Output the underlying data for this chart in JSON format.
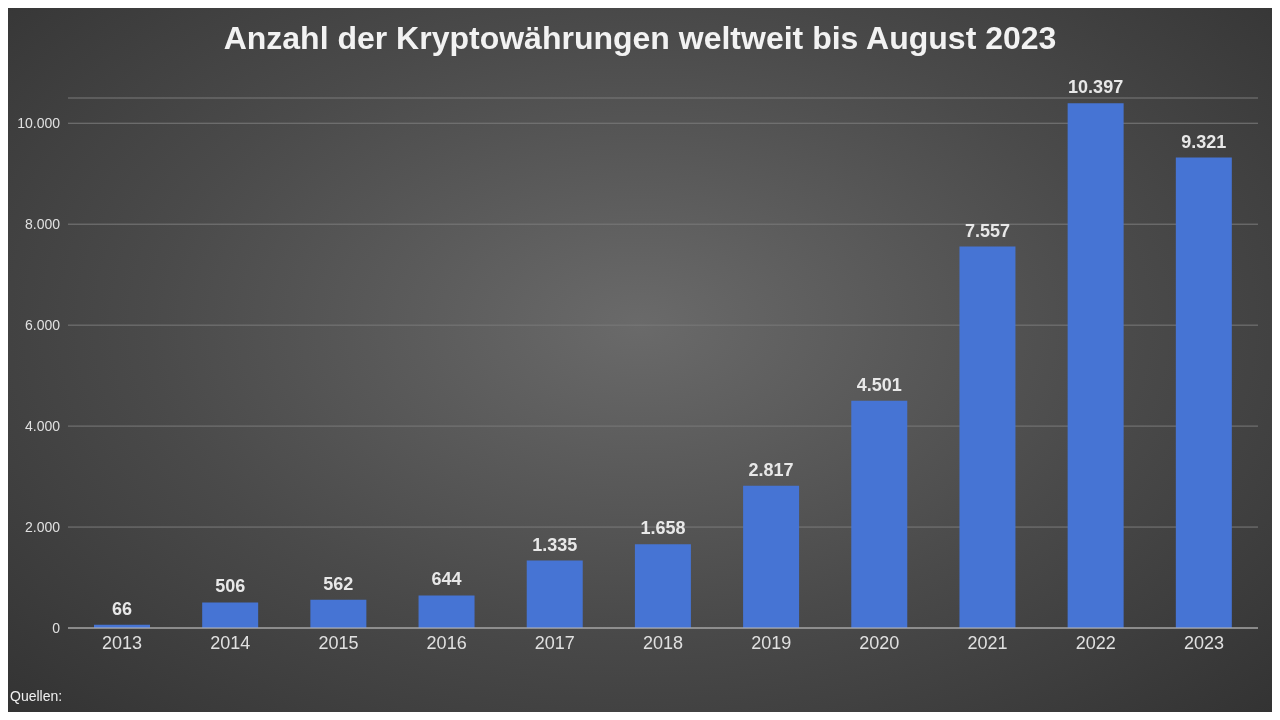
{
  "chart_data": {
    "type": "bar",
    "title": "Anzahl der Kryptowährungen weltweit bis August 2023",
    "categories": [
      "2013",
      "2014",
      "2015",
      "2016",
      "2017",
      "2018",
      "2019",
      "2020",
      "2021",
      "2022",
      "2023"
    ],
    "values": [
      66,
      506,
      562,
      644,
      1335,
      1658,
      2817,
      4501,
      7557,
      10397,
      9321
    ],
    "value_labels": [
      "66",
      "506",
      "562",
      "644",
      "1.335",
      "1.658",
      "2.817",
      "4.501",
      "7.557",
      "10.397",
      "9.321"
    ],
    "color": "#4674d4",
    "ylim": [
      0,
      10500
    ],
    "yticks": [
      0,
      {
        "value": 2000,
        "label": "2.000"
      },
      {
        "value": 4000,
        "label": "4.000"
      },
      {
        "value": 6000,
        "label": "6.000"
      },
      {
        "value": 8000,
        "label": "8.000"
      },
      {
        "value": 10000,
        "label": "10.000"
      }
    ],
    "grid": "y",
    "annotations": [
      "Quellen:"
    ]
  }
}
